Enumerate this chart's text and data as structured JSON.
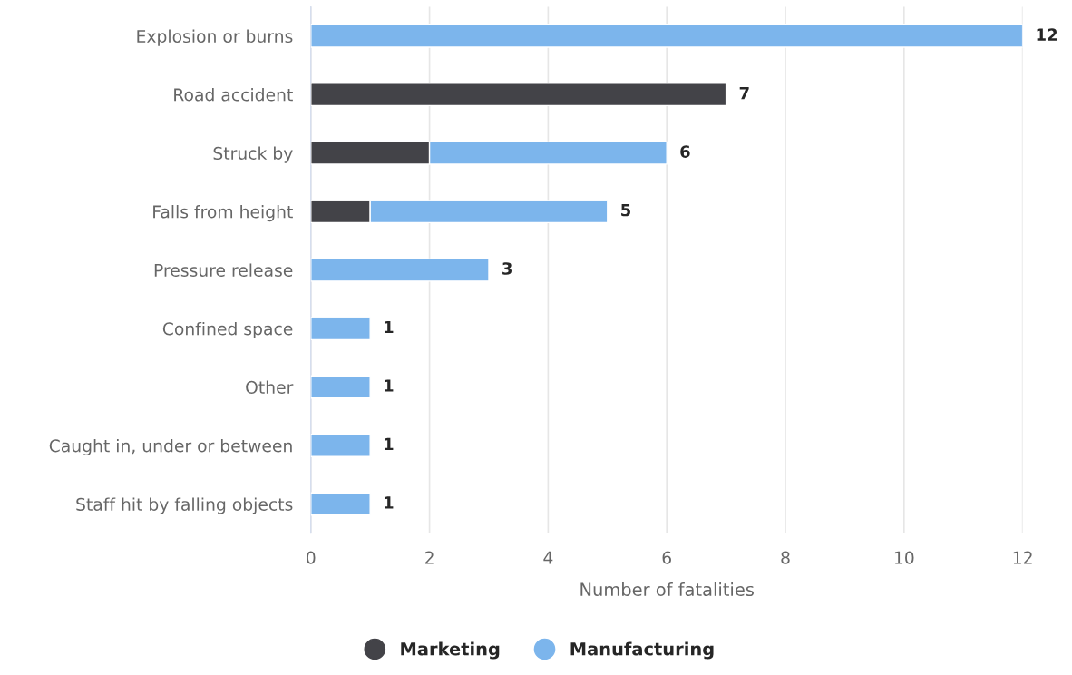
{
  "chart_data": {
    "type": "bar",
    "orientation": "horizontal",
    "stacked": true,
    "categories": [
      "Explosion or burns",
      "Road accident",
      "Struck by",
      "Falls from height",
      "Pressure release",
      "Confined space",
      "Other",
      "Caught in, under or between",
      "Staff hit by falling objects"
    ],
    "series": [
      {
        "name": "Marketing",
        "color": "#434348",
        "values": [
          null,
          7,
          2,
          1,
          null,
          null,
          null,
          null,
          null
        ]
      },
      {
        "name": "Manufacturing",
        "color": "#7cb5ec",
        "values": [
          12,
          null,
          4,
          4,
          3,
          1,
          1,
          1,
          1
        ]
      }
    ],
    "totals": [
      "12",
      "7",
      "6",
      "5",
      "3",
      "1",
      "1",
      "1",
      "1"
    ],
    "xlabel": "Number of fatalities",
    "xlim": [
      0,
      12
    ],
    "xticks": [
      0,
      2,
      4,
      6,
      8,
      10,
      12
    ],
    "grid": "x",
    "legend": "bottom"
  }
}
